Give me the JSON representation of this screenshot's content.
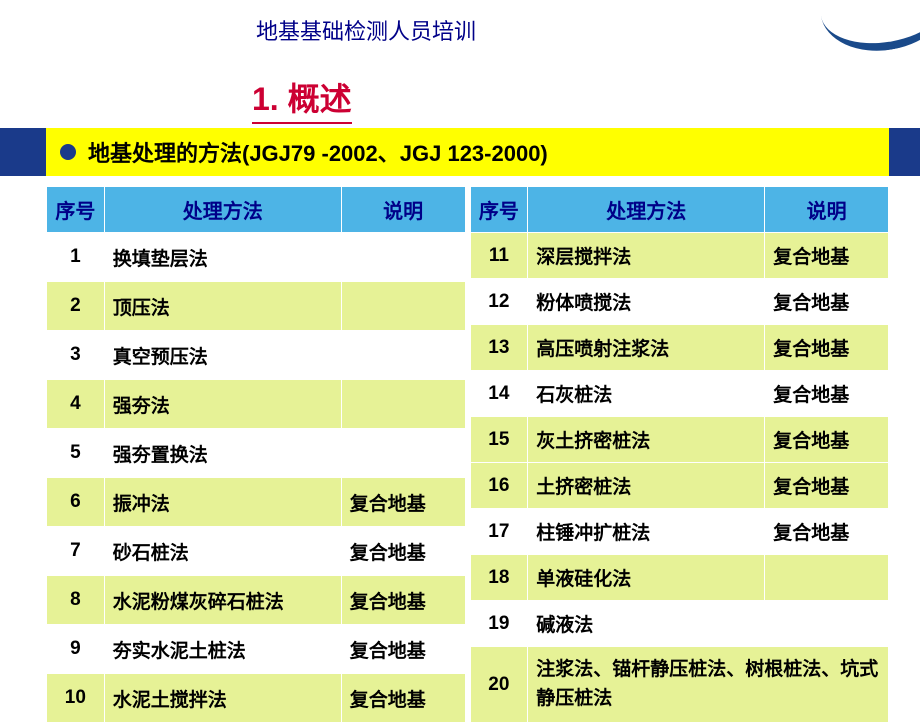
{
  "header": {
    "title": "地基基础检测人员培训"
  },
  "section": {
    "number": "1.",
    "label": "概述"
  },
  "subtitle": {
    "text": "地基处理的方法(JGJ79 -2002、JGJ 123-2000)"
  },
  "table": {
    "headers": {
      "num": "序号",
      "method": "处理方法",
      "desc": "说明"
    },
    "left_rows": [
      {
        "num": "1",
        "method": "换填垫层法",
        "desc": "",
        "color": "white"
      },
      {
        "num": "2",
        "method": "顶压法",
        "desc": "",
        "color": "yellow"
      },
      {
        "num": "3",
        "method": "真空预压法",
        "desc": "",
        "color": "white"
      },
      {
        "num": "4",
        "method": "强夯法",
        "desc": "",
        "color": "yellow"
      },
      {
        "num": "5",
        "method": "强夯置换法",
        "desc": "",
        "color": "white"
      },
      {
        "num": "6",
        "method": "振冲法",
        "desc": "复合地基",
        "color": "yellow"
      },
      {
        "num": "7",
        "method": "砂石桩法",
        "desc": "复合地基",
        "color": "white"
      },
      {
        "num": "8",
        "method": "水泥粉煤灰碎石桩法",
        "desc": "复合地基",
        "color": "yellow"
      },
      {
        "num": "9",
        "method": "夯实水泥土桩法",
        "desc": "复合地基",
        "color": "white"
      },
      {
        "num": "10",
        "method": "水泥土搅拌法",
        "desc": "复合地基",
        "color": "yellow"
      }
    ],
    "right_rows": [
      {
        "num": "11",
        "method": "深层搅拌法",
        "desc": "复合地基",
        "color": "yellow"
      },
      {
        "num": "12",
        "method": "粉体喷搅法",
        "desc": "复合地基",
        "color": "white"
      },
      {
        "num": "13",
        "method": "高压喷射注浆法",
        "desc": "复合地基",
        "color": "yellow"
      },
      {
        "num": "14",
        "method": "石灰桩法",
        "desc": "复合地基",
        "color": "white"
      },
      {
        "num": "15",
        "method": "灰土挤密桩法",
        "desc": "复合地基",
        "color": "yellow"
      },
      {
        "num": "16",
        "method": "土挤密桩法",
        "desc": "复合地基",
        "color": "yellow"
      },
      {
        "num": "17",
        "method": "柱锤冲扩桩法",
        "desc": "复合地基",
        "color": "white"
      },
      {
        "num": "18",
        "method": "单液硅化法",
        "desc": "",
        "color": "yellow"
      },
      {
        "num": "19",
        "method": "碱液法",
        "desc": "",
        "color": "white"
      }
    ],
    "last_row": {
      "num": "20",
      "text": "注浆法、锚杆静压桩法、树根桩法、坑式静压桩法",
      "color": "yellow"
    }
  },
  "colors": {
    "header_row_bg": "#4db4e6",
    "row_white": "#ffffff",
    "row_yellow": "#e6f296",
    "blue_band": "#1a3a8a",
    "yellow_bar": "#ffff00",
    "red_title": "#cc0033",
    "header_text": "#000088"
  }
}
